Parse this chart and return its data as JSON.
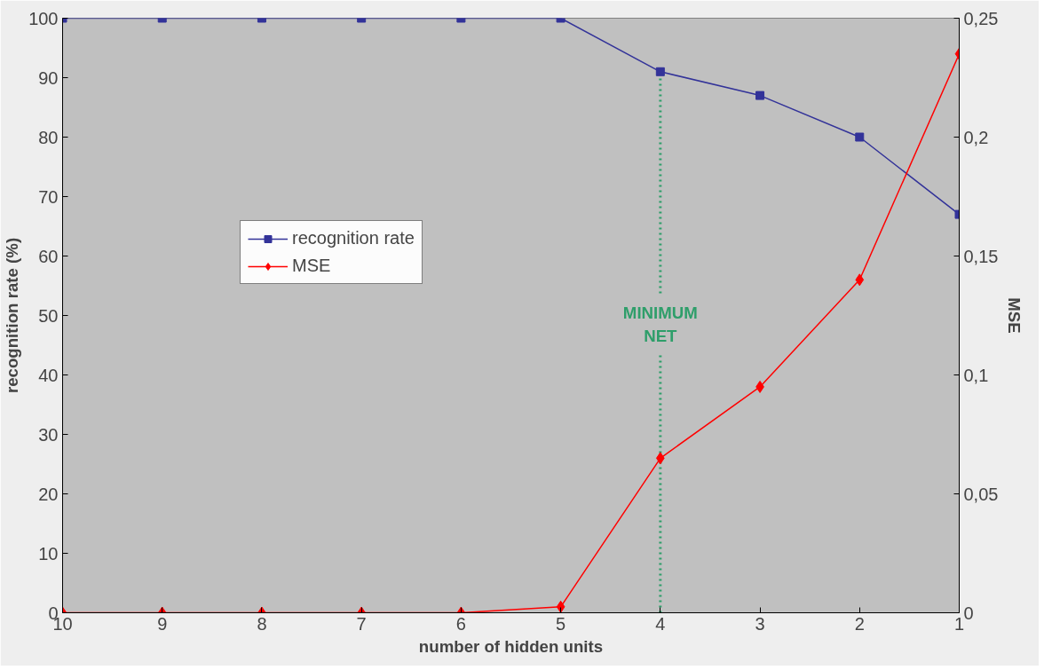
{
  "chart_data": {
    "type": "line",
    "xlabel": "number of hidden units",
    "ylabel": "recognition rate (%)",
    "y2label": "MSE",
    "categories": [
      "10",
      "9",
      "8",
      "7",
      "6",
      "5",
      "4",
      "3",
      "2",
      "1"
    ],
    "series": [
      {
        "name": "recognition rate",
        "color": "#333399",
        "marker": "square",
        "values": [
          100,
          100,
          100,
          100,
          100,
          100,
          91,
          87,
          80,
          67
        ]
      },
      {
        "name": "MSE",
        "color": "#ff0000",
        "marker": "diamond",
        "axis": "y2",
        "values": [
          0,
          0,
          0,
          0,
          0,
          0.0025,
          0.065,
          0.095,
          0.14,
          0.235
        ]
      }
    ],
    "ylim": [
      0,
      100
    ],
    "yticks": [
      0,
      10,
      20,
      30,
      40,
      50,
      60,
      70,
      80,
      90,
      100
    ],
    "y2lim": [
      0,
      0.25
    ],
    "y2ticks": [
      0,
      {
        "value": 0.05,
        "label": "0,05"
      },
      {
        "value": 0.1,
        "label": "0,1"
      },
      {
        "value": 0.15,
        "label": "0,15"
      },
      {
        "value": 0.2,
        "label": "0,2"
      },
      {
        "value": 0.25,
        "label": "0,25"
      }
    ],
    "ref_lines": [
      {
        "axis": "x",
        "value": "4",
        "label": "MINIMUM NET",
        "color": "#2e9e6a",
        "line_style": "dotted"
      }
    ],
    "grid": false,
    "legend": "left"
  }
}
